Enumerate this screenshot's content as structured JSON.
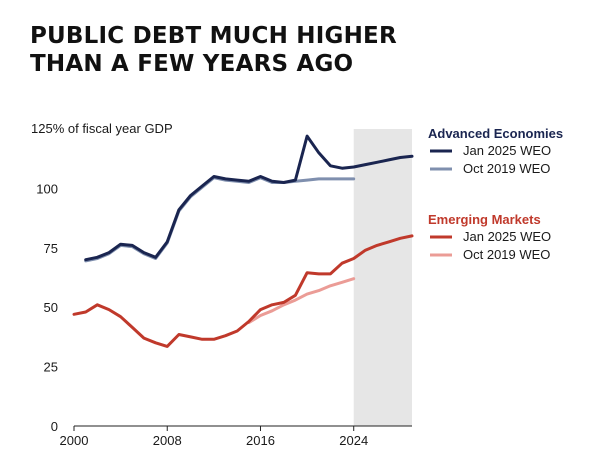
{
  "title_lines": [
    "PUBLIC DEBT MUCH HIGHER",
    "THAN A FEW YEARS AGO"
  ],
  "chart_data": {
    "type": "line",
    "ylabel": "125% of fiscal year GDP",
    "xlim": [
      2000,
      2029
    ],
    "ylim": [
      0,
      125
    ],
    "x_ticks": [
      2000,
      2008,
      2016,
      2024
    ],
    "y_ticks": [
      0,
      25,
      50,
      75,
      100
    ],
    "projection_shade_start": 2024,
    "grid": false,
    "legend_position": "right",
    "groups": [
      {
        "name": "Advanced Economies",
        "color": "#c0392b",
        "heading_color": "#1a2550",
        "series": [
          {
            "name": "Jan 2025 WEO",
            "color": "#1a2550",
            "x": [
              2001,
              2002,
              2003,
              2004,
              2005,
              2006,
              2007,
              2008,
              2009,
              2010,
              2011,
              2012,
              2013,
              2014,
              2015,
              2016,
              2017,
              2018,
              2019,
              2020,
              2021,
              2022,
              2023,
              2024,
              2025,
              2026,
              2027,
              2028,
              2029
            ],
            "y": [
              70,
              71,
              73,
              76.5,
              76,
              73,
              71,
              77.5,
              91,
              97,
              101,
              105,
              104,
              103.5,
              103,
              105,
              103,
              102.5,
              103.5,
              122,
              115,
              109.5,
              108.5,
              109,
              110,
              111,
              112,
              113,
              113.5
            ]
          },
          {
            "name": "Oct 2019 WEO",
            "color": "#7f8fae",
            "x": [
              2001,
              2002,
              2003,
              2004,
              2005,
              2006,
              2007,
              2008,
              2009,
              2010,
              2011,
              2012,
              2013,
              2014,
              2015,
              2016,
              2017,
              2018,
              2019,
              2020,
              2021,
              2022,
              2023,
              2024
            ],
            "y": [
              69.5,
              70.5,
              72.5,
              76,
              75.5,
              72.5,
              70.5,
              77,
              90.5,
              96.5,
              100.5,
              104.5,
              103.5,
              103,
              102.5,
              104.5,
              102.5,
              102.5,
              103,
              103.5,
              104,
              104,
              104,
              104
            ]
          }
        ]
      },
      {
        "name": "Emerging Markets",
        "heading_color": "#c0392b",
        "series": [
          {
            "name": "Jan 2025 WEO",
            "color": "#c0392b",
            "x": [
              2000,
              2001,
              2002,
              2003,
              2004,
              2005,
              2006,
              2007,
              2008,
              2009,
              2010,
              2011,
              2012,
              2013,
              2014,
              2015,
              2016,
              2017,
              2018,
              2019,
              2020,
              2021,
              2022,
              2023,
              2024,
              2025,
              2026,
              2027,
              2028,
              2029
            ],
            "y": [
              47,
              48,
              51,
              49,
              46,
              41.5,
              37,
              35,
              33.5,
              38.5,
              37.5,
              36.5,
              36.5,
              38,
              40,
              44,
              49,
              51,
              52,
              55,
              64.5,
              64,
              64,
              68.5,
              70.5,
              74,
              76,
              77.5,
              79,
              80
            ]
          },
          {
            "name": "Oct 2019 WEO",
            "color": "#eb9c96",
            "x": [
              2015,
              2016,
              2017,
              2018,
              2019,
              2020,
              2021,
              2022,
              2023,
              2024
            ],
            "y": [
              43.5,
              46.5,
              48.5,
              51,
              53,
              55.5,
              57,
              59,
              60.5,
              62
            ]
          }
        ]
      }
    ]
  }
}
